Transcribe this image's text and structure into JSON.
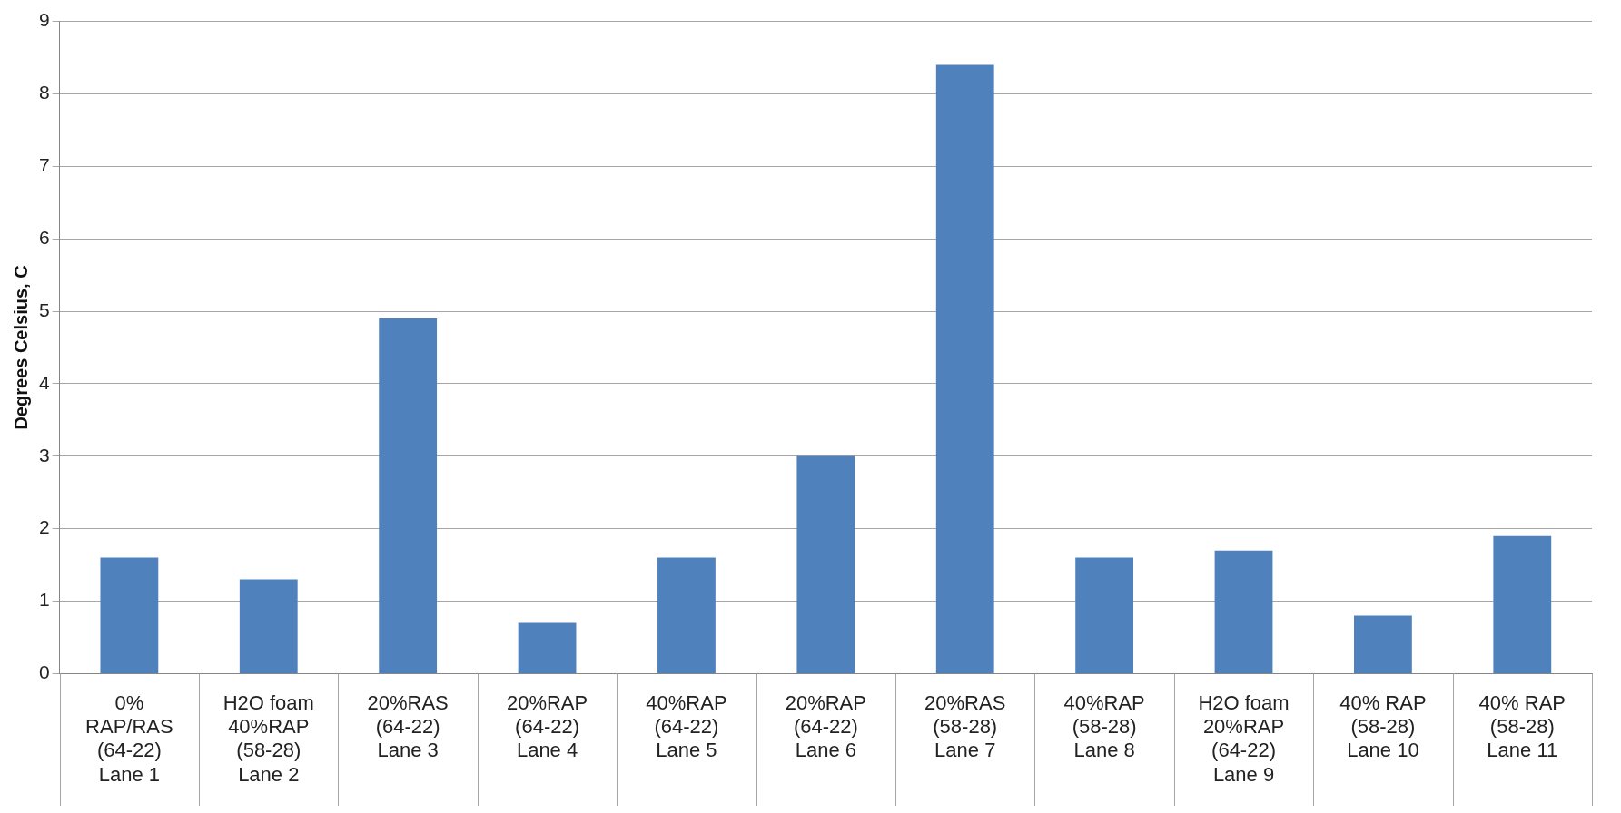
{
  "chart_data": {
    "type": "bar",
    "ylabel": "Degrees Celsius, C",
    "categories": [
      "0%\nRAP/RAS\n(64-22)\nLane 1",
      "H2O foam\n40%RAP\n(58-28)\nLane 2",
      "20%RAS\n(64-22)\nLane 3",
      "20%RAP\n(64-22)\nLane 4",
      "40%RAP\n(64-22)\nLane 5",
      "20%RAP\n(64-22)\nLane 6",
      "20%RAS\n(58-28)\nLane 7",
      "40%RAP\n(58-28)\nLane 8",
      "H2O foam\n20%RAP\n(64-22)\nLane 9",
      "40% RAP\n(58-28)\nLane 10",
      "40% RAP\n(58-28)\nLane 11"
    ],
    "values": [
      1.6,
      1.3,
      4.9,
      0.7,
      1.6,
      3.0,
      8.4,
      1.6,
      1.7,
      0.8,
      1.9
    ],
    "color": "#4f81bd",
    "ylim": [
      0,
      9
    ],
    "yticks": [
      0,
      1,
      2,
      3,
      4,
      5,
      6,
      7,
      8,
      9
    ],
    "grid": "y",
    "legend": false
  }
}
